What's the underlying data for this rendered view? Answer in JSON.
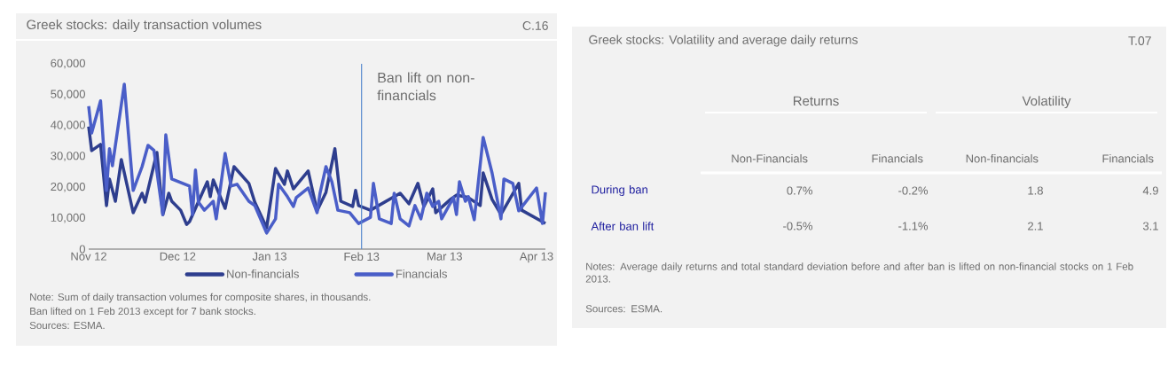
{
  "chart_data": [
    {
      "type": "line",
      "title": "Greek stocks: daily transaction volumes",
      "annotations": [
        "C.16",
        "Note: Sum of daily transaction volumes for composite shares, in thousands.",
        "Ban lifted on 1 Feb 2013 except for 7 bank stocks.",
        "Sources: ESMA."
      ],
      "xlim": [
        "2012-11-01",
        "2013-04-04"
      ],
      "xticks": [
        {
          "value": "2012-11-01",
          "label": "Nov 12"
        },
        {
          "value": "2012-12-01",
          "label": "Dec 12"
        },
        {
          "value": "2013-01-01",
          "label": "Jan 13"
        },
        {
          "value": "2013-02-01",
          "label": "Feb 13"
        },
        {
          "value": "2013-03-01",
          "label": "Mar 13"
        },
        {
          "value": "2013-04-01",
          "label": "Apr 13"
        }
      ],
      "ylim": [
        0,
        60000
      ],
      "yticks": [
        {
          "value": 0,
          "label": "0"
        },
        {
          "value": 10000,
          "label": "10,000"
        },
        {
          "value": 20000,
          "label": "20,000"
        },
        {
          "value": 30000,
          "label": "30,000"
        },
        {
          "value": 40000,
          "label": "40,000"
        },
        {
          "value": 50000,
          "label": "50,000"
        },
        {
          "value": 60000,
          "label": "60,000"
        }
      ],
      "legend": "bottom",
      "grid": false,
      "ref_lines": [
        {
          "axis": "x",
          "value": "2013-02-01",
          "label": "Ban lift on non-financials",
          "color": "#5b8ccf"
        }
      ],
      "series": [
        {
          "name": "Non-financials",
          "color": "#2e3e8e",
          "x": [
            "2012-11-01",
            "2012-11-02",
            "2012-11-05",
            "2012-11-07",
            "2012-11-08",
            "2012-11-10",
            "2012-11-12",
            "2012-11-16",
            "2012-11-19",
            "2012-11-20",
            "2012-11-24",
            "2012-11-26",
            "2012-11-28",
            "2012-11-29",
            "2012-12-02",
            "2012-12-04",
            "2012-12-05",
            "2012-12-07",
            "2012-12-11",
            "2012-12-12",
            "2012-12-13",
            "2012-12-17",
            "2012-12-20",
            "2012-12-25",
            "2012-12-27",
            "2012-12-31",
            "2013-01-03",
            "2013-01-06",
            "2013-01-07",
            "2013-01-09",
            "2013-01-14",
            "2013-01-17",
            "2013-01-20",
            "2013-01-23",
            "2013-01-25",
            "2013-01-29",
            "2013-01-30",
            "2013-01-31",
            "2013-02-04",
            "2013-02-14",
            "2013-02-17",
            "2013-02-20",
            "2013-02-22",
            "2013-02-25",
            "2013-02-26",
            "2013-03-03",
            "2013-03-05",
            "2013-03-09",
            "2013-03-13",
            "2013-03-14",
            "2013-03-17",
            "2013-03-20",
            "2013-03-26",
            "2013-03-27",
            "2013-04-04"
          ],
          "values": [
            39700,
            31900,
            33900,
            14100,
            22700,
            15500,
            29000,
            11800,
            18100,
            15200,
            31300,
            11200,
            18100,
            15500,
            12600,
            8000,
            8900,
            13200,
            21800,
            17000,
            22400,
            13200,
            26700,
            21300,
            15200,
            6900,
            26100,
            21000,
            25300,
            19500,
            25300,
            12400,
            18400,
            32500,
            15500,
            13800,
            19000,
            14100,
            12600,
            18100,
            14700,
            21300,
            13800,
            19500,
            11800,
            16100,
            17500,
            16700,
            14100,
            24700,
            16100,
            11200,
            21300,
            12600,
            8300
          ]
        },
        {
          "name": "Financials",
          "color": "#4a5ec8",
          "x": [
            "2012-11-01",
            "2012-11-02",
            "2012-11-05",
            "2012-11-07",
            "2012-11-08",
            "2012-11-09",
            "2012-11-13",
            "2012-11-16",
            "2012-11-19",
            "2012-11-21",
            "2012-11-23",
            "2012-11-26",
            "2012-11-27",
            "2012-11-29",
            "2012-12-05",
            "2012-12-06",
            "2012-12-07",
            "2012-12-08",
            "2012-12-10",
            "2012-12-13",
            "2012-12-14",
            "2012-12-17",
            "2012-12-19",
            "2012-12-21",
            "2012-12-25",
            "2012-12-27",
            "2012-12-31",
            "2013-01-03",
            "2013-01-04",
            "2013-01-07",
            "2013-01-09",
            "2013-01-10",
            "2013-01-14",
            "2013-01-17",
            "2013-01-18",
            "2013-01-20",
            "2013-01-22",
            "2013-01-24",
            "2013-01-28",
            "2013-01-31",
            "2013-02-04",
            "2013-02-05",
            "2013-02-07",
            "2013-02-11",
            "2013-02-12",
            "2013-02-14",
            "2013-02-17",
            "2013-02-19",
            "2013-02-21",
            "2013-02-23",
            "2013-02-25",
            "2013-02-27",
            "2013-02-28",
            "2013-03-04",
            "2013-03-05",
            "2013-03-06",
            "2013-03-08",
            "2013-03-09",
            "2013-03-11",
            "2013-03-14",
            "2013-03-17",
            "2013-03-20",
            "2013-03-21",
            "2013-03-24",
            "2013-03-26",
            "2013-04-01",
            "2013-04-03",
            "2013-04-04"
          ],
          "values": [
            46300,
            37600,
            48000,
            19000,
            32500,
            27000,
            53400,
            19000,
            26700,
            33600,
            32000,
            11200,
            37000,
            22700,
            20400,
            11200,
            25600,
            15200,
            12600,
            15500,
            9800,
            31000,
            20400,
            21000,
            15500,
            14100,
            5200,
            9800,
            21000,
            17000,
            13800,
            16700,
            19800,
            11800,
            18100,
            26700,
            21800,
            12600,
            11800,
            8300,
            10300,
            21300,
            9800,
            8300,
            18100,
            9800,
            7500,
            14100,
            9800,
            18100,
            13800,
            15500,
            9800,
            16700,
            11200,
            21800,
            15500,
            17000,
            9500,
            36200,
            24700,
            9800,
            22700,
            21300,
            12400,
            19800,
            8300,
            18400
          ]
        }
      ]
    },
    {
      "type": "other",
      "title": "Greek stocks: Volatility and average daily returns",
      "annotations": [
        "T.07",
        "Returns",
        "Volatility",
        "Notes: Average daily returns and total standard deviation before and after ban is lifted on non-financial stocks on 1 Feb 2013.",
        "Sources: ESMA."
      ],
      "categories": [
        "Non-Financials",
        "Financials",
        "Non-financials",
        "Financials"
      ],
      "y_categories": [
        "During ban",
        "After ban lift"
      ],
      "cell_labels": [
        [
          "0.7%",
          "-0.2%",
          "1.8",
          "4.9"
        ],
        [
          "-0.5%",
          "-1.1%",
          "2.1",
          "3.1"
        ]
      ]
    }
  ]
}
